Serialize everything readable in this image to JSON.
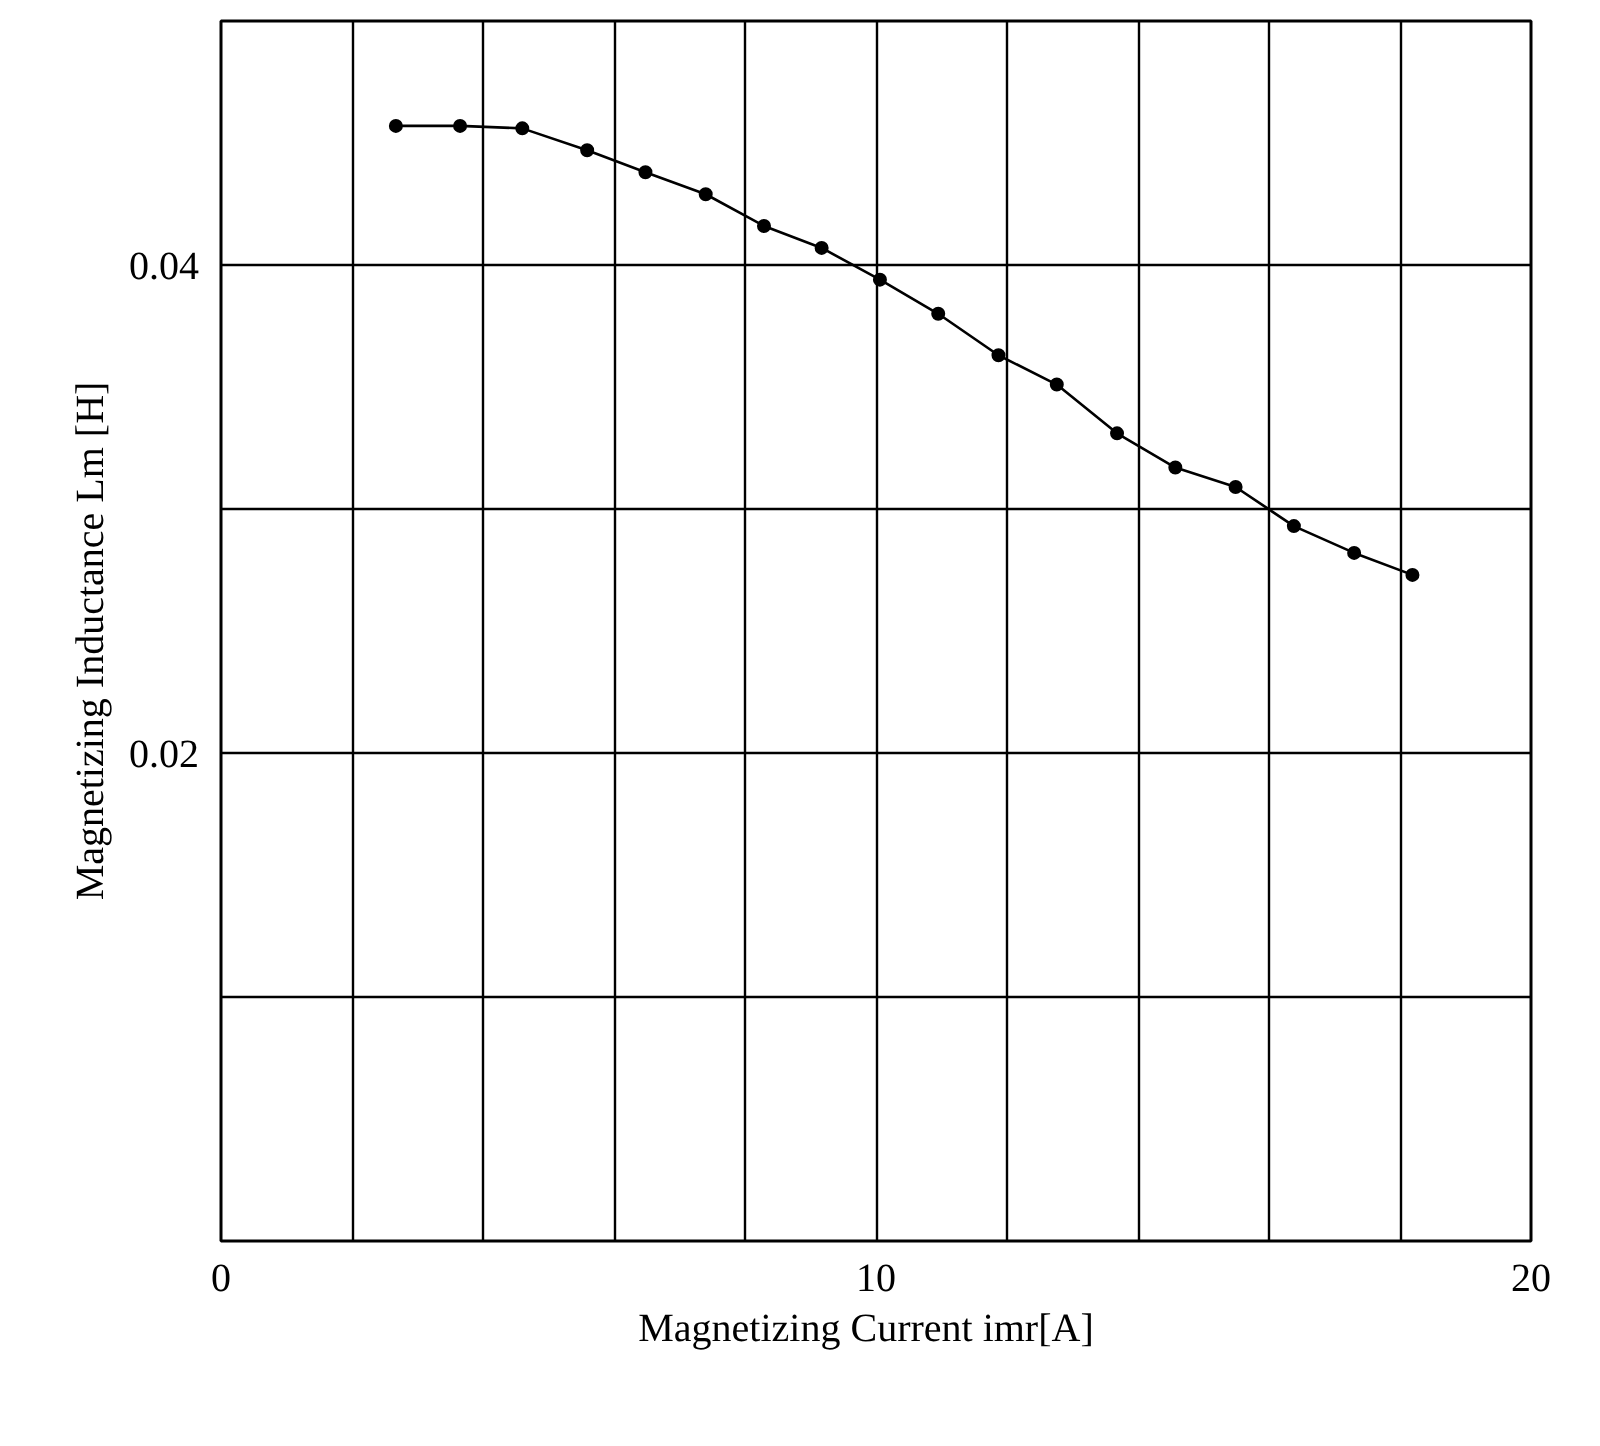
{
  "chart_data": {
    "type": "line",
    "xlabel": "Magnetizing  Current  imr[A]",
    "ylabel": "Magnetizing  Inductance  Lm [H]",
    "x": [
      2.67,
      3.65,
      4.6,
      5.59,
      6.48,
      7.4,
      8.29,
      9.17,
      10.06,
      10.95,
      11.87,
      12.76,
      13.68,
      14.57,
      15.49,
      16.38,
      17.3,
      18.19
    ],
    "series": [
      {
        "color": "#000000",
        "values": [
          0.0457,
          0.0457,
          0.0456,
          0.0447,
          0.0438,
          0.0429,
          0.0416,
          0.0407,
          0.0394,
          0.038,
          0.0363,
          0.0351,
          0.0331,
          0.0317,
          0.0309,
          0.0293,
          0.0282,
          0.0273
        ]
      }
    ],
    "xlim": [
      0,
      20
    ],
    "ylim": [
      0,
      0.05
    ],
    "xticks": [
      0,
      {
        "value": 2,
        "label": null
      },
      {
        "value": 4,
        "label": null
      },
      {
        "value": 6,
        "label": null
      },
      {
        "value": 8,
        "label": null
      },
      10,
      {
        "value": 12,
        "label": null
      },
      {
        "value": 14,
        "label": null
      },
      {
        "value": 16,
        "label": null
      },
      {
        "value": 18,
        "label": null
      },
      20
    ],
    "yticks": [
      {
        "value": 0,
        "label": null
      },
      {
        "value": 0.01,
        "label": null
      },
      0.02,
      {
        "value": 0.03,
        "label": null
      },
      0.04,
      {
        "value": 0.05,
        "label": null
      }
    ],
    "grid": true,
    "marker": "circle",
    "line_style": "solid"
  }
}
